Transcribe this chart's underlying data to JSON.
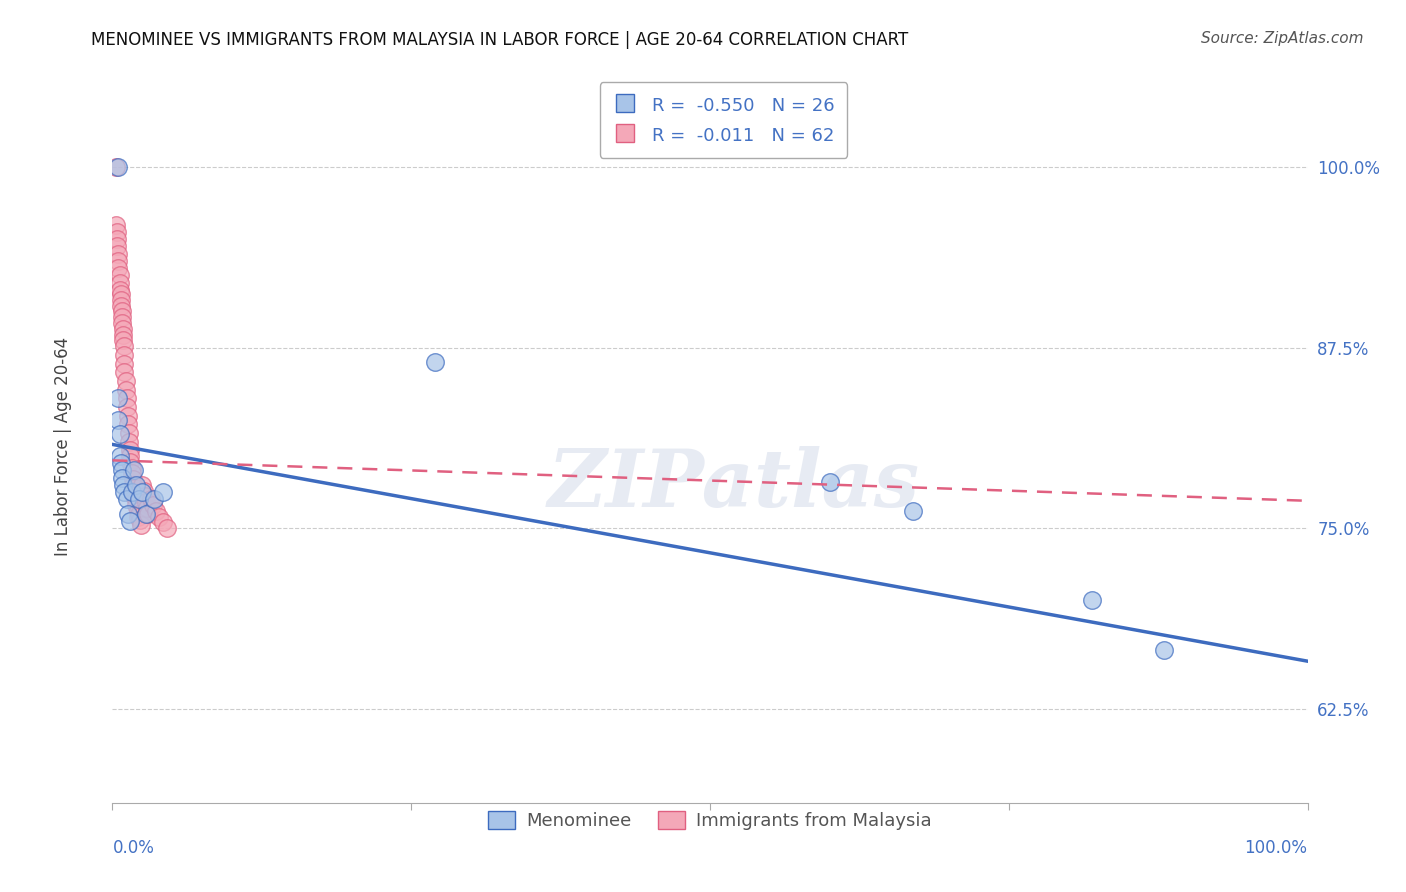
{
  "title": "MENOMINEE VS IMMIGRANTS FROM MALAYSIA IN LABOR FORCE | AGE 20-64 CORRELATION CHART",
  "source": "Source: ZipAtlas.com",
  "ylabel": "In Labor Force | Age 20-64",
  "ylabel_ticks": [
    0.625,
    0.75,
    0.875,
    1.0
  ],
  "ylabel_tick_labels": [
    "62.5%",
    "75.0%",
    "87.5%",
    "100.0%"
  ],
  "xlim": [
    0.0,
    1.0
  ],
  "ylim": [
    0.56,
    1.06
  ],
  "legend_blue_R": "-0.550",
  "legend_blue_N": "26",
  "legend_pink_R": "-0.011",
  "legend_pink_N": "62",
  "blue_color": "#a8c4e8",
  "pink_color": "#f4a8b8",
  "trend_blue_color": "#3d6bbf",
  "trend_pink_color": "#e06080",
  "watermark": "ZIPatlas",
  "menominee_x": [
    0.005,
    0.27,
    0.005,
    0.005,
    0.006,
    0.006,
    0.007,
    0.008,
    0.008,
    0.009,
    0.01,
    0.012,
    0.013,
    0.015,
    0.016,
    0.018,
    0.02,
    0.022,
    0.025,
    0.028,
    0.035,
    0.042,
    0.6,
    0.67,
    0.82,
    0.88
  ],
  "menominee_y": [
    1.0,
    0.865,
    0.84,
    0.825,
    0.815,
    0.8,
    0.795,
    0.79,
    0.785,
    0.78,
    0.775,
    0.77,
    0.76,
    0.755,
    0.775,
    0.79,
    0.78,
    0.77,
    0.775,
    0.76,
    0.77,
    0.775,
    0.782,
    0.762,
    0.7,
    0.666
  ],
  "malaysia_x": [
    0.003,
    0.003,
    0.004,
    0.004,
    0.004,
    0.005,
    0.005,
    0.005,
    0.006,
    0.006,
    0.006,
    0.007,
    0.007,
    0.007,
    0.008,
    0.008,
    0.008,
    0.009,
    0.009,
    0.009,
    0.01,
    0.01,
    0.01,
    0.01,
    0.011,
    0.011,
    0.012,
    0.012,
    0.013,
    0.013,
    0.014,
    0.014,
    0.015,
    0.015,
    0.015,
    0.016,
    0.016,
    0.017,
    0.017,
    0.018,
    0.018,
    0.019,
    0.019,
    0.02,
    0.02,
    0.021,
    0.021,
    0.022,
    0.023,
    0.024,
    0.025,
    0.026,
    0.027,
    0.028,
    0.029,
    0.03,
    0.032,
    0.034,
    0.036,
    0.039,
    0.042,
    0.046
  ],
  "malaysia_y": [
    1.0,
    0.96,
    0.955,
    0.95,
    0.945,
    0.94,
    0.935,
    0.93,
    0.925,
    0.92,
    0.915,
    0.912,
    0.908,
    0.904,
    0.9,
    0.896,
    0.892,
    0.888,
    0.884,
    0.88,
    0.876,
    0.87,
    0.864,
    0.858,
    0.852,
    0.846,
    0.84,
    0.834,
    0.828,
    0.822,
    0.816,
    0.81,
    0.804,
    0.8,
    0.796,
    0.792,
    0.788,
    0.784,
    0.78,
    0.776,
    0.772,
    0.778,
    0.774,
    0.77,
    0.766,
    0.762,
    0.758,
    0.76,
    0.756,
    0.752,
    0.78,
    0.776,
    0.772,
    0.768,
    0.764,
    0.76,
    0.77,
    0.766,
    0.762,
    0.758,
    0.754,
    0.75
  ],
  "blue_trend_x0": 0.0,
  "blue_trend_y0": 0.808,
  "blue_trend_x1": 1.0,
  "blue_trend_y1": 0.658,
  "pink_trend_x0": 0.0,
  "pink_trend_y0": 0.797,
  "pink_trend_x1": 1.0,
  "pink_trend_y1": 0.769
}
